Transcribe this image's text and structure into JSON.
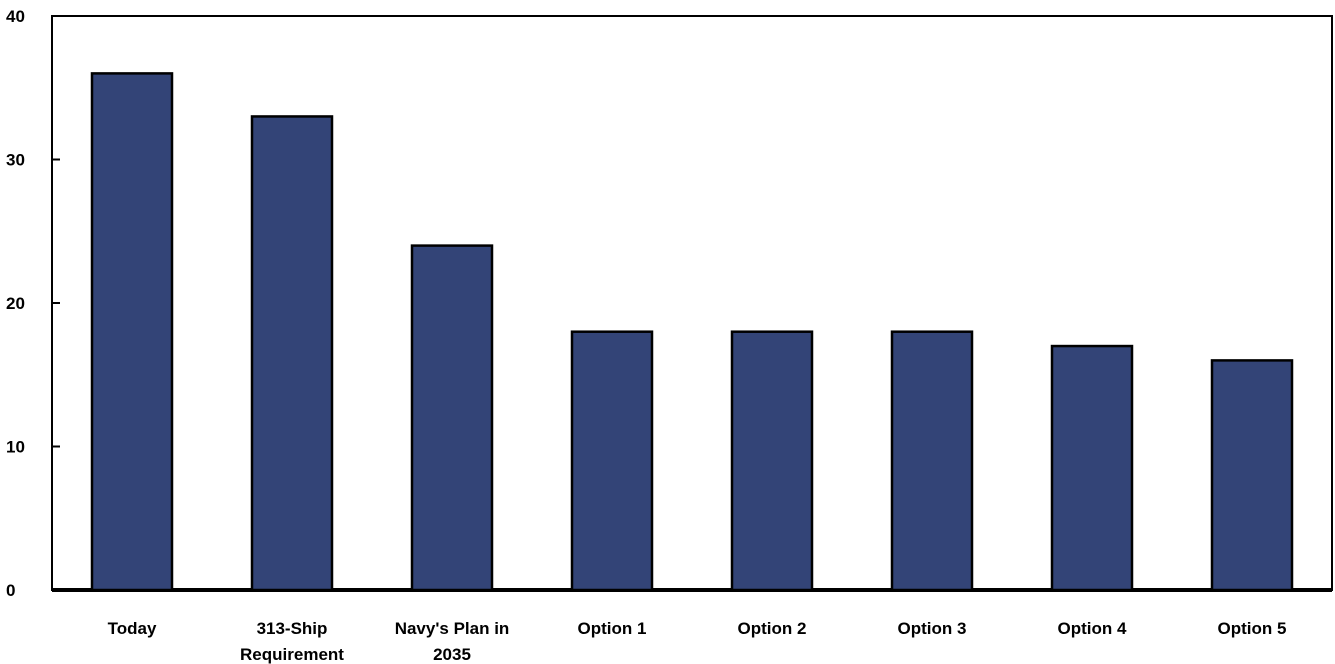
{
  "chart_data": {
    "type": "bar",
    "categories": [
      "Today",
      "313-Ship Requirement",
      "Navy's Plan in 2035",
      "Option 1",
      "Option 2",
      "Option 3",
      "Option 4",
      "Option 5"
    ],
    "category_lines": [
      [
        "Today"
      ],
      [
        "313-Ship",
        "Requirement"
      ],
      [
        "Navy's Plan in",
        "2035"
      ],
      [
        "Option 1"
      ],
      [
        "Option 2"
      ],
      [
        "Option 3"
      ],
      [
        "Option 4"
      ],
      [
        "Option 5"
      ]
    ],
    "values": [
      36,
      33,
      24,
      18,
      18,
      18,
      17,
      16
    ],
    "title": "",
    "xlabel": "",
    "ylabel": "",
    "ylim": [
      0,
      40
    ],
    "yticks": [
      0,
      10,
      20,
      30,
      40
    ],
    "grid": false,
    "legend": "none",
    "colors": {
      "bar_fill": "#334477",
      "bar_stroke": "#000000",
      "axis": "#000000"
    }
  }
}
